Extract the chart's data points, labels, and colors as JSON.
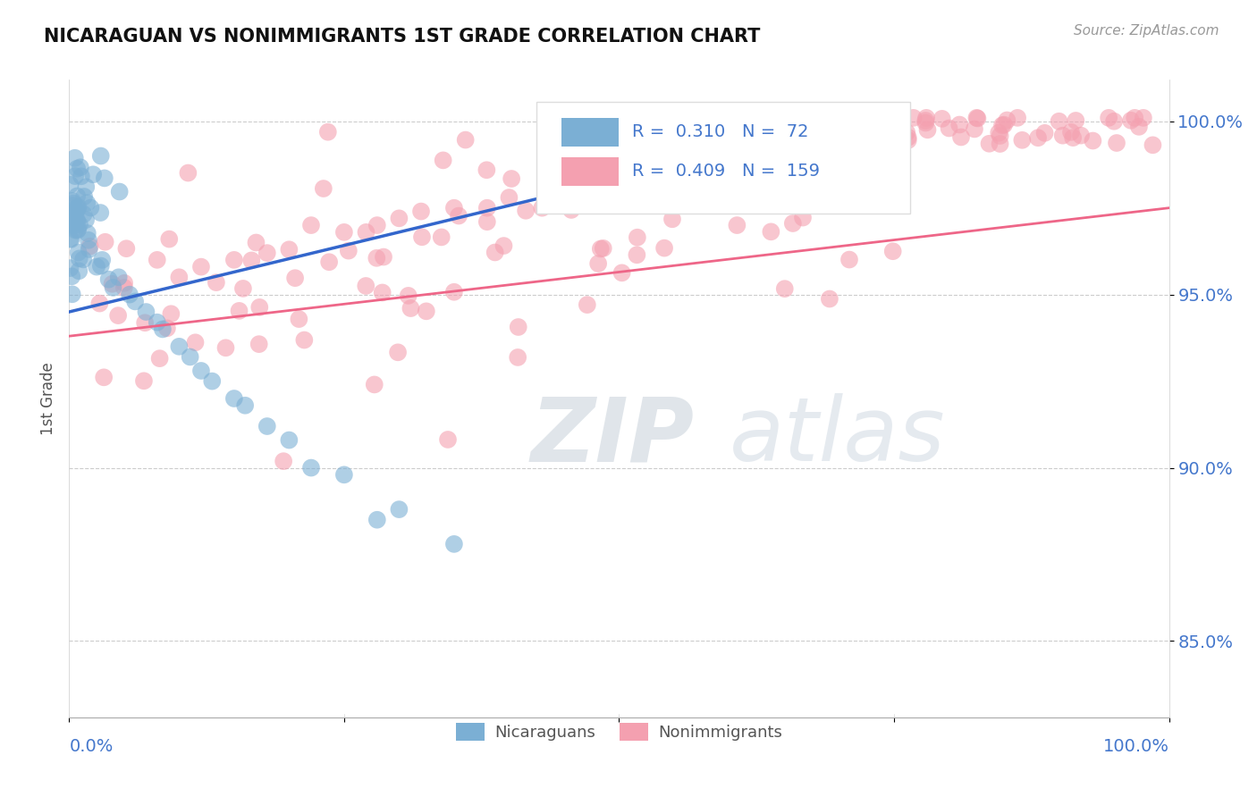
{
  "title": "NICARAGUAN VS NONIMMIGRANTS 1ST GRADE CORRELATION CHART",
  "source": "Source: ZipAtlas.com",
  "ylabel": "1st Grade",
  "yticks": [
    0.85,
    0.9,
    0.95,
    1.0
  ],
  "ytick_labels": [
    "85.0%",
    "90.0%",
    "95.0%",
    "100.0%"
  ],
  "xmin": 0.0,
  "xmax": 1.0,
  "ymin": 0.828,
  "ymax": 1.012,
  "blue_R": 0.31,
  "blue_N": 72,
  "pink_R": 0.409,
  "pink_N": 159,
  "blue_color": "#7BAFD4",
  "pink_color": "#F4A0B0",
  "blue_line_color": "#3366CC",
  "pink_line_color": "#EE6688",
  "title_color": "#111111",
  "axis_label_color": "#555555",
  "tick_label_color": "#4477CC",
  "background_color": "#FFFFFF",
  "grid_color": "#CCCCCC",
  "source_color": "#999999",
  "watermark_zip_color": "#99AABB",
  "watermark_atlas_color": "#AABBCC",
  "blue_line_x0": 0.0,
  "blue_line_y0": 0.945,
  "blue_line_x1": 0.73,
  "blue_line_y1": 1.001,
  "pink_line_x0": 0.0,
  "pink_line_y0": 0.938,
  "pink_line_x1": 1.0,
  "pink_line_y1": 0.975
}
